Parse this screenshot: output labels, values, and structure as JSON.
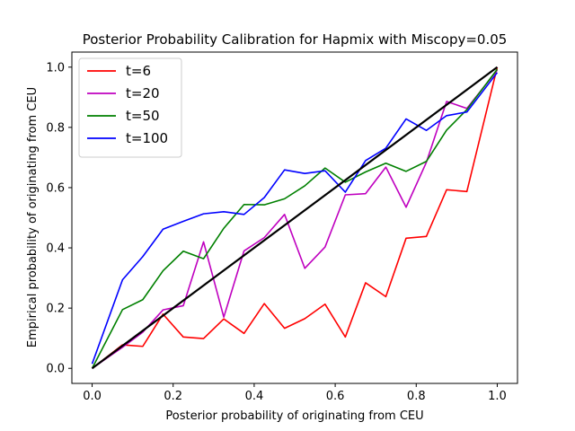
{
  "chart_data": {
    "type": "line",
    "title": "Posterior Probability Calibration for Hapmix with Miscopy=0.05",
    "xlabel": "Posterior probability of originating from CEU",
    "ylabel": "Empirical probability of originating from CEU",
    "xlim": [
      -0.05,
      1.05
    ],
    "ylim": [
      -0.05,
      1.05
    ],
    "xticks": [
      "0.0",
      "0.2",
      "0.4",
      "0.6",
      "0.8",
      "1.0"
    ],
    "yticks": [
      "0.0",
      "0.2",
      "0.4",
      "0.6",
      "0.8",
      "1.0"
    ],
    "grid": false,
    "legend_position": "upper-left",
    "x": [
      0.0,
      0.075,
      0.125,
      0.175,
      0.225,
      0.275,
      0.325,
      0.375,
      0.425,
      0.475,
      0.525,
      0.575,
      0.625,
      0.675,
      0.725,
      0.775,
      0.825,
      0.875,
      0.925,
      1.0
    ],
    "series": [
      {
        "name": "t=6",
        "color": "#ff0000",
        "values": [
          0.0,
          0.078,
          0.073,
          0.18,
          0.104,
          0.099,
          0.164,
          0.116,
          0.215,
          0.133,
          0.165,
          0.213,
          0.104,
          0.284,
          0.238,
          0.432,
          0.438,
          0.593,
          0.587,
          1.0
        ]
      },
      {
        "name": "t=20",
        "color": "#bf00bf",
        "values": [
          0.0,
          0.07,
          0.12,
          0.194,
          0.208,
          0.42,
          0.17,
          0.39,
          0.434,
          0.511,
          0.332,
          0.403,
          0.576,
          0.58,
          0.668,
          0.535,
          0.684,
          0.886,
          0.863,
          0.99
        ]
      },
      {
        "name": "t=50",
        "color": "#008000",
        "values": [
          0.0,
          0.195,
          0.228,
          0.324,
          0.389,
          0.364,
          0.465,
          0.544,
          0.543,
          0.563,
          0.606,
          0.665,
          0.618,
          0.652,
          0.681,
          0.654,
          0.687,
          0.791,
          0.859,
          0.993
        ]
      },
      {
        "name": "t=100",
        "color": "#0000ff",
        "values": [
          0.015,
          0.294,
          0.371,
          0.462,
          0.488,
          0.513,
          0.52,
          0.511,
          0.567,
          0.659,
          0.647,
          0.656,
          0.585,
          0.69,
          0.731,
          0.828,
          0.79,
          0.839,
          0.851,
          0.982
        ]
      }
    ],
    "reference_line": {
      "color": "#000000",
      "x": [
        0.0,
        1.0
      ],
      "y": [
        0.0,
        1.0
      ]
    }
  }
}
